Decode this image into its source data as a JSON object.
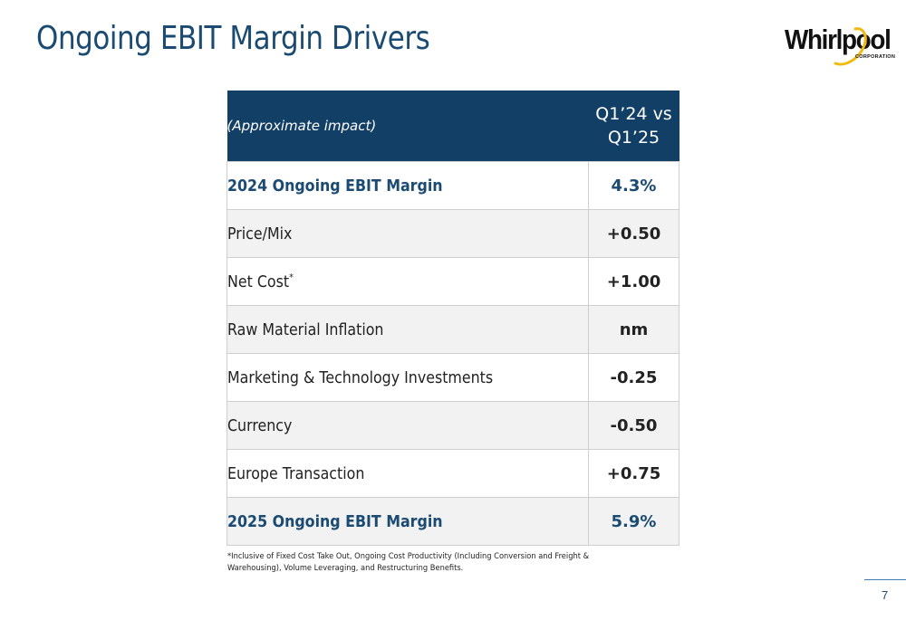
{
  "slide": {
    "title": "Ongoing EBIT Margin Drivers",
    "page_number": "7"
  },
  "logo": {
    "wordmark": "Whirlpool",
    "subtext": "CORPORATION"
  },
  "table": {
    "header_left": "(Approximate impact)",
    "header_right_line1": "Q1’24 vs",
    "header_right_line2": "Q1’25",
    "rows": [
      {
        "label": "2024 Ongoing EBIT Margin",
        "value": "4.3%"
      },
      {
        "label": "Price/Mix",
        "value": "+0.50"
      },
      {
        "label": "Net Cost",
        "label_sup": "*",
        "value": "+1.00"
      },
      {
        "label": "Raw Material Inflation",
        "value": "nm"
      },
      {
        "label": "Marketing & Technology Investments",
        "value": "-0.25"
      },
      {
        "label": "Currency",
        "value": "-0.50"
      },
      {
        "label": "Europe Transaction",
        "value": "+0.75"
      },
      {
        "label": "2025 Ongoing EBIT Margin",
        "value": "5.9%"
      }
    ]
  },
  "footnote": "*Inclusive of Fixed Cost Take Out, Ongoing Cost Productivity (Including Conversion and Freight & Warehousing), Volume Leveraging, and Restructuring Benefits.",
  "colors": {
    "header_bg": "#123f66",
    "title": "#1b4b72",
    "positive": "#5c9a3a",
    "negative": "#e0575b",
    "neutral": "#6a6a6a",
    "logo_accent": "#f2b90f"
  }
}
